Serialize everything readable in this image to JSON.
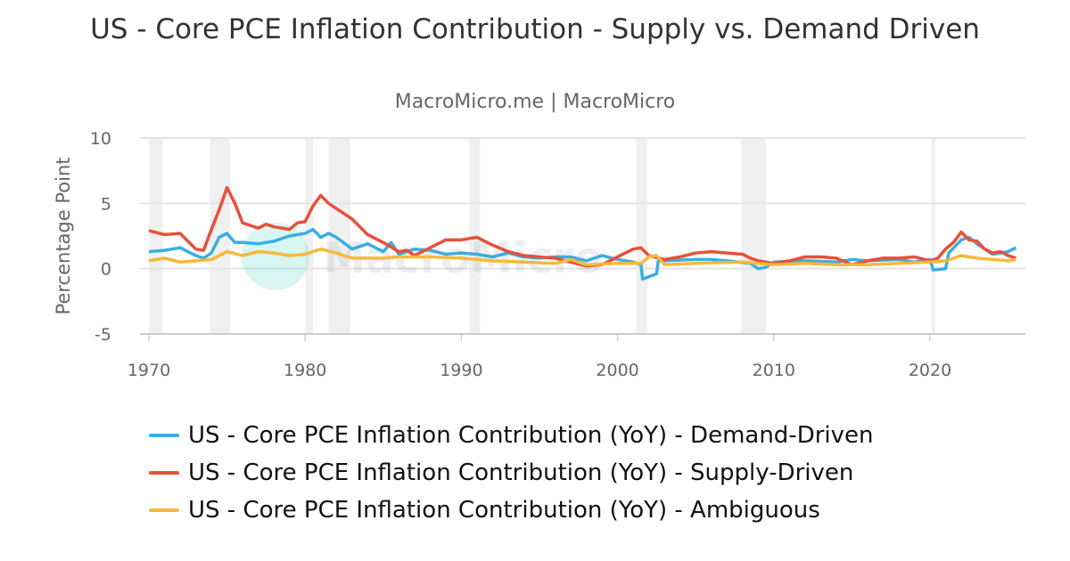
{
  "chart_data": {
    "type": "line",
    "title": "US - Core PCE Inflation Contribution - Supply vs. Demand Driven",
    "subtitle": "MacroMicro.me | MacroMicro",
    "watermark": "MacroMicro",
    "ylabel": "Percentage Point",
    "xlabel": "",
    "xlim": [
      1969.5,
      2026.2
    ],
    "ylim": [
      -5,
      10
    ],
    "yticks": [
      "10",
      "5",
      "0",
      "-5"
    ],
    "ytick_values": [
      10,
      5,
      0,
      -5
    ],
    "xticks": [
      "1970",
      "1980",
      "1990",
      "2000",
      "2010",
      "2020"
    ],
    "xtick_values": [
      1970,
      1980,
      1990,
      2000,
      2010,
      2020
    ],
    "grid": true,
    "legend_position": "bottom",
    "recessions": [
      [
        1970.0,
        1970.9
      ],
      [
        1973.9,
        1975.2
      ],
      [
        1980.0,
        1980.5
      ],
      [
        1981.5,
        1982.9
      ],
      [
        1990.5,
        1991.2
      ],
      [
        2001.2,
        2001.9
      ],
      [
        2007.9,
        2009.5
      ],
      [
        2020.1,
        2020.3
      ]
    ],
    "series": [
      {
        "name": "US - Core PCE Inflation Contribution (YoY) - Demand-Driven",
        "color": "#3aaee0",
        "x": [
          1970,
          1971,
          1972,
          1973,
          1973.5,
          1974,
          1974.5,
          1975,
          1975.5,
          1976,
          1977,
          1978,
          1979,
          1980,
          1980.5,
          1981,
          1981.5,
          1982,
          1983,
          1984,
          1985,
          1985.5,
          1986,
          1987,
          1988,
          1989,
          1990,
          1991,
          1992,
          1993,
          1994,
          1995,
          1996,
          1997,
          1998,
          1999,
          2000,
          2001,
          2001.5,
          2001.6,
          2002.5,
          2002.6,
          2003,
          2005,
          2006,
          2007,
          2008.5,
          2009,
          2009.5,
          2010,
          2012,
          2014,
          2015,
          2016,
          2018,
          2019,
          2020,
          2020.2,
          2021,
          2021.2,
          2022,
          2022.5,
          2023,
          2024,
          2025,
          2025.5
        ],
        "y": [
          1.3,
          1.4,
          1.6,
          1.0,
          0.8,
          1.2,
          2.4,
          2.7,
          2.0,
          2.0,
          1.9,
          2.1,
          2.5,
          2.7,
          3.0,
          2.4,
          2.7,
          2.4,
          1.5,
          1.9,
          1.3,
          2.0,
          1.1,
          1.5,
          1.4,
          1.1,
          1.2,
          1.1,
          0.9,
          1.2,
          0.9,
          0.8,
          0.9,
          0.9,
          0.6,
          1.0,
          0.7,
          0.5,
          0.3,
          -0.8,
          -0.4,
          0.6,
          0.6,
          0.7,
          0.7,
          0.6,
          0.4,
          0.0,
          0.1,
          0.5,
          0.6,
          0.5,
          0.7,
          0.6,
          0.7,
          0.5,
          0.7,
          -0.1,
          0.0,
          1.2,
          2.2,
          2.4,
          1.9,
          1.1,
          1.3,
          1.6
        ]
      },
      {
        "name": "US - Core PCE Inflation Contribution (YoY) - Supply-Driven",
        "color": "#e8503a",
        "x": [
          1970,
          1971,
          1972,
          1973,
          1973.5,
          1974,
          1974.5,
          1975,
          1975.5,
          1976,
          1977,
          1977.5,
          1978,
          1979,
          1979.5,
          1980,
          1980.5,
          1981,
          1981.5,
          1982,
          1983,
          1984,
          1985,
          1986,
          1986.5,
          1987,
          1988,
          1989,
          1990,
          1991,
          1992,
          1993,
          1994,
          1995,
          1996,
          1997,
          1998,
          1999,
          2000,
          2001,
          2001.5,
          2002,
          2003,
          2004,
          2005,
          2006,
          2007,
          2008,
          2008.5,
          2009,
          2010,
          2011,
          2012,
          2013,
          2014,
          2015,
          2016,
          2017,
          2018,
          2019,
          2020,
          2020.5,
          2021,
          2021.5,
          2022,
          2022.5,
          2023,
          2023.5,
          2024,
          2024.5,
          2025,
          2025.5
        ],
        "y": [
          2.9,
          2.6,
          2.7,
          1.5,
          1.4,
          3.0,
          4.5,
          6.2,
          5.0,
          3.5,
          3.1,
          3.4,
          3.2,
          3.0,
          3.5,
          3.6,
          4.8,
          5.6,
          5.0,
          4.6,
          3.8,
          2.6,
          2.0,
          1.3,
          1.4,
          1.0,
          1.6,
          2.2,
          2.2,
          2.4,
          1.8,
          1.3,
          1.0,
          0.9,
          0.8,
          0.5,
          0.2,
          0.3,
          0.9,
          1.5,
          1.6,
          1.0,
          0.7,
          0.9,
          1.2,
          1.3,
          1.2,
          1.1,
          0.8,
          0.6,
          0.4,
          0.6,
          0.9,
          0.9,
          0.8,
          0.3,
          0.6,
          0.8,
          0.8,
          0.9,
          0.6,
          0.8,
          1.5,
          2.0,
          2.8,
          2.2,
          2.1,
          1.5,
          1.2,
          1.3,
          1.0,
          0.8
        ]
      },
      {
        "name": "US - Core PCE Inflation Contribution (YoY) - Ambiguous",
        "color": "#f5b93b",
        "x": [
          1970,
          1971,
          1972,
          1973,
          1974,
          1975,
          1976,
          1977,
          1978,
          1979,
          1980,
          1981,
          1982,
          1983,
          1985,
          1986,
          1988,
          1990,
          1992,
          1994,
          1996,
          1997,
          1998,
          2000,
          2001.5,
          2002,
          2002.5,
          2003,
          2005,
          2008,
          2010,
          2012,
          2014,
          2016,
          2018,
          2020,
          2021,
          2022,
          2023,
          2024,
          2025,
          2025.5
        ],
        "y": [
          0.6,
          0.8,
          0.5,
          0.6,
          0.7,
          1.3,
          1.0,
          1.3,
          1.2,
          1.0,
          1.1,
          1.5,
          1.2,
          0.8,
          0.8,
          0.9,
          0.9,
          0.8,
          0.6,
          0.5,
          0.4,
          0.7,
          0.3,
          0.4,
          0.4,
          0.9,
          1.0,
          0.3,
          0.4,
          0.5,
          0.3,
          0.4,
          0.3,
          0.3,
          0.4,
          0.5,
          0.6,
          1.0,
          0.8,
          0.7,
          0.6,
          0.7
        ]
      }
    ]
  }
}
